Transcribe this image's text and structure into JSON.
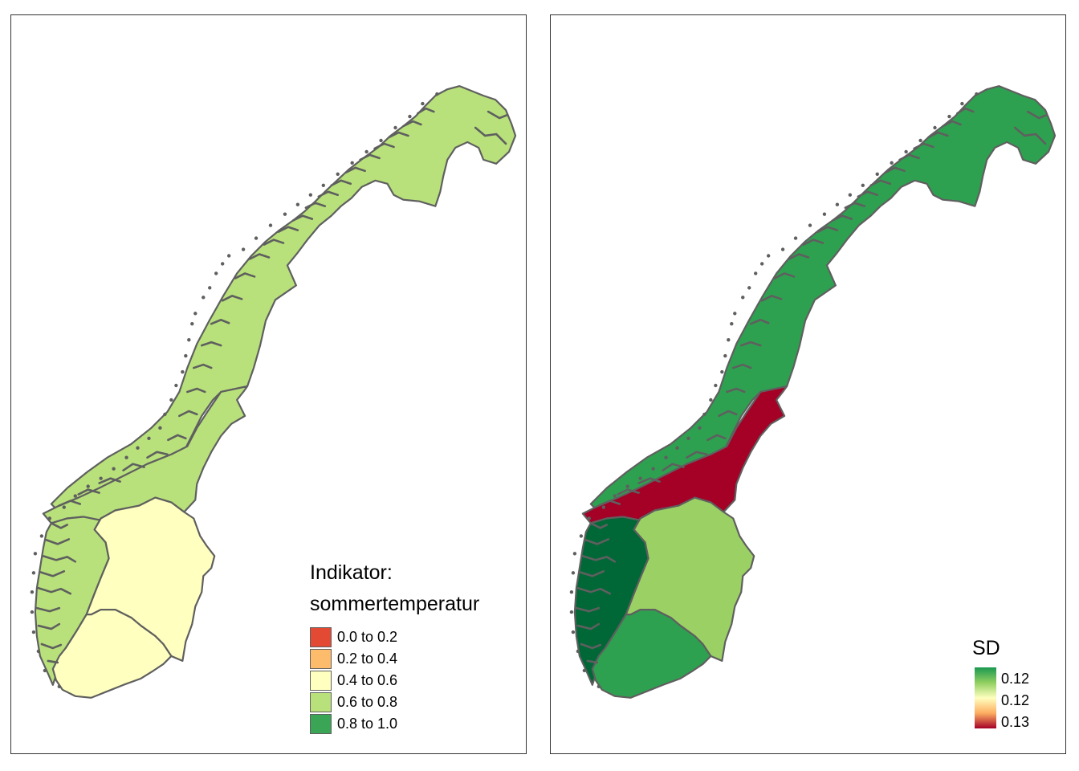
{
  "left_map": {
    "legend_title_line1": "Indikator:",
    "legend_title_line2": "sommertemperatur",
    "legend_items": [
      {
        "label": "0.0 to 0.2",
        "color": "#e34a33"
      },
      {
        "label": "0.2 to 0.4",
        "color": "#fdbb6c"
      },
      {
        "label": "0.4 to 0.6",
        "color": "#ffffbf"
      },
      {
        "label": "0.6 to 0.8",
        "color": "#b8e17b"
      },
      {
        "label": "0.8 to 1.0",
        "color": "#3aa655"
      }
    ],
    "region_colors": {
      "north": "#b8e17b",
      "middle": "#b8e17b",
      "west": "#b8e17b",
      "east": "#ffffbf",
      "south": "#ffffbf"
    }
  },
  "right_map": {
    "legend_title": "SD",
    "gradient_labels": [
      "0.12",
      "0.12",
      "0.13"
    ],
    "gradient_colors": [
      "#1a9850",
      "#91cf60",
      "#ffffbf",
      "#fdae61",
      "#a50026"
    ],
    "region_colors": {
      "north": "#2ea150",
      "middle": "#a50026",
      "west": "#006837",
      "east": "#9bd164",
      "south": "#2ea150"
    }
  },
  "border_color": "#5f5f5f",
  "icons": {
    "norway_map": "norway-regions-map"
  }
}
